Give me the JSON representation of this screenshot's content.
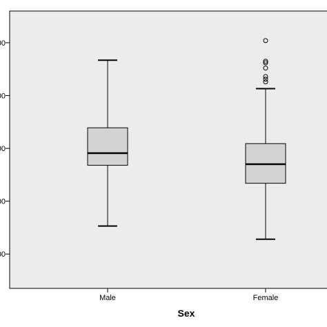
{
  "chart_data": {
    "type": "boxplot",
    "xlabel": "Sex",
    "categories": [
      "Male",
      "Female"
    ],
    "y_tick_labels": [
      "00",
      "00",
      "00",
      "00",
      "00"
    ],
    "y_tick_values": [
      100,
      200,
      300,
      400,
      500
    ],
    "ylim": [
      35,
      560
    ],
    "grid": false,
    "colors": {
      "plot_background": "#ececec",
      "box_fill": "#d3d3d3",
      "stroke": "#000000"
    },
    "boxes": [
      {
        "category": "Male",
        "min": 153,
        "q1": 268,
        "median": 291,
        "q3": 339,
        "max": 467,
        "outliers": []
      },
      {
        "category": "Female",
        "min": 128,
        "q1": 234,
        "median": 270,
        "q3": 309,
        "max": 413,
        "outliers": [
          426,
          431,
          436,
          452,
          462,
          465,
          504
        ]
      }
    ]
  }
}
